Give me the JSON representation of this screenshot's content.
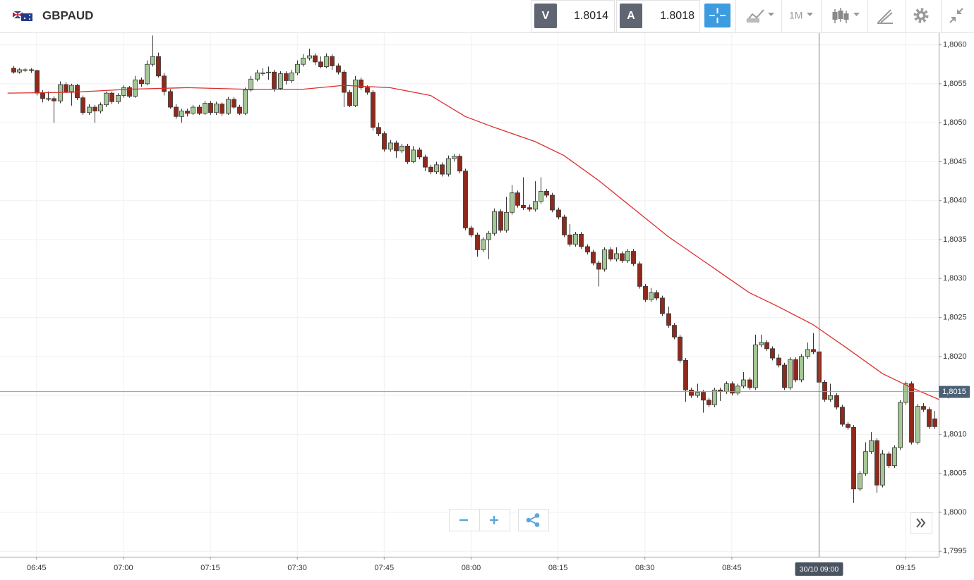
{
  "toolbar": {
    "symbol": "GBPAUD",
    "sell": {
      "label": "V",
      "price": 1.8014
    },
    "buy": {
      "label": "A",
      "price": 1.8018
    },
    "timeframe": "1M"
  },
  "chart_data": {
    "type": "candlestick",
    "up_color": "#a5c796",
    "down_color": "#8e2a1c",
    "grid": true,
    "xlim": [
      -2.3,
      159.7
    ],
    "ylim": [
      1.79943,
      1.80615
    ],
    "xticks": [
      {
        "value": 4,
        "label": "06:45"
      },
      {
        "value": 19,
        "label": "07:00"
      },
      {
        "value": 34,
        "label": "07:15"
      },
      {
        "value": 49,
        "label": "07:30"
      },
      {
        "value": 64,
        "label": "07:45"
      },
      {
        "value": 79,
        "label": "08:00"
      },
      {
        "value": 94,
        "label": "08:15"
      },
      {
        "value": 109,
        "label": "08:30"
      },
      {
        "value": 124,
        "label": "08:45"
      },
      {
        "value": 154,
        "label": "09:15"
      }
    ],
    "yticks": [
      {
        "value": 1.7995,
        "label": "1,7995"
      },
      {
        "value": 1.8,
        "label": "1,8000"
      },
      {
        "value": 1.8005,
        "label": "1,8005"
      },
      {
        "value": 1.801,
        "label": "1,8010"
      },
      {
        "value": 1.8015,
        "label": "1,8015"
      },
      {
        "value": 1.802,
        "label": "1,8020"
      },
      {
        "value": 1.8025,
        "label": "1,8025"
      },
      {
        "value": 1.803,
        "label": "1,8030"
      },
      {
        "value": 1.8035,
        "label": "1,8035"
      },
      {
        "value": 1.804,
        "label": "1,8040"
      },
      {
        "value": 1.8045,
        "label": "1,8045"
      },
      {
        "value": 1.805,
        "label": "1,8050"
      },
      {
        "value": 1.8055,
        "label": "1,8055"
      },
      {
        "value": 1.806,
        "label": "1,8060"
      }
    ],
    "price_line": {
      "value": 1.80155,
      "label": "1,8015"
    },
    "crosshair": {
      "x": 139,
      "label": "30/10 09:00"
    },
    "ma": {
      "color": "#d9302c",
      "x": [
        -1,
        10,
        20,
        30,
        40,
        50,
        57,
        65,
        72,
        78,
        83,
        90,
        95,
        101,
        107,
        113,
        120,
        127,
        132,
        138,
        144,
        150,
        155,
        160
      ],
      "values": [
        1.80538,
        1.80539,
        1.80543,
        1.80545,
        1.80543,
        1.80543,
        1.80548,
        1.80545,
        1.80535,
        1.80508,
        1.80494,
        1.80476,
        1.80458,
        1.80426,
        1.8039,
        1.80354,
        1.80318,
        1.80282,
        1.80264,
        1.80241,
        1.8021,
        1.80178,
        1.8016,
        1.80144
      ]
    },
    "candles": [
      [
        1.8057,
        1.80573,
        1.80563,
        1.80565
      ],
      [
        1.80565,
        1.8057,
        1.80563,
        1.80568
      ],
      [
        1.80568,
        1.8057,
        1.80565,
        1.80568
      ],
      [
        1.80568,
        1.8057,
        1.80564,
        1.80567
      ],
      [
        1.80567,
        1.80568,
        1.80535,
        1.80538
      ],
      [
        1.80538,
        1.80542,
        1.80526,
        1.80531
      ],
      [
        1.80531,
        1.8054,
        1.80528,
        1.80531
      ],
      [
        1.80531,
        1.80534,
        1.805,
        1.80528
      ],
      [
        1.80528,
        1.80553,
        1.80525,
        1.80549
      ],
      [
        1.80549,
        1.80552,
        1.80538,
        1.8054
      ],
      [
        1.8054,
        1.8055,
        1.80522,
        1.80548
      ],
      [
        1.80548,
        1.8055,
        1.80529,
        1.80532
      ],
      [
        1.80532,
        1.80535,
        1.8051,
        1.80513
      ],
      [
        1.80513,
        1.80524,
        1.8051,
        1.8052
      ],
      [
        1.8052,
        1.80523,
        1.805,
        1.80515
      ],
      [
        1.80515,
        1.80526,
        1.80512,
        1.80523
      ],
      [
        1.80523,
        1.8054,
        1.8052,
        1.80538
      ],
      [
        1.80538,
        1.8054,
        1.80524,
        1.80527
      ],
      [
        1.80527,
        1.80538,
        1.80524,
        1.80535
      ],
      [
        1.80535,
        1.80548,
        1.80532,
        1.80545
      ],
      [
        1.80545,
        1.80547,
        1.80532,
        1.80534
      ],
      [
        1.80534,
        1.8056,
        1.80532,
        1.80555
      ],
      [
        1.80555,
        1.80558,
        1.80546,
        1.8055
      ],
      [
        1.8055,
        1.8058,
        1.80548,
        1.80575
      ],
      [
        1.80575,
        1.80612,
        1.80572,
        1.80585
      ],
      [
        1.80585,
        1.8059,
        1.80558,
        1.8056
      ],
      [
        1.8056,
        1.80564,
        1.80535,
        1.8054
      ],
      [
        1.8054,
        1.80543,
        1.80518,
        1.8052
      ],
      [
        1.8052,
        1.80524,
        1.80505,
        1.80508
      ],
      [
        1.80508,
        1.80518,
        1.805,
        1.80515
      ],
      [
        1.80515,
        1.80518,
        1.80508,
        1.80512
      ],
      [
        1.80512,
        1.80523,
        1.8051,
        1.8052
      ],
      [
        1.8052,
        1.80523,
        1.8051,
        1.80512
      ],
      [
        1.80512,
        1.80528,
        1.8051,
        1.80525
      ],
      [
        1.80525,
        1.80528,
        1.8051,
        1.80513
      ],
      [
        1.80513,
        1.80527,
        1.8051,
        1.80524
      ],
      [
        1.80524,
        1.80526,
        1.80509,
        1.80512
      ],
      [
        1.80512,
        1.80533,
        1.8051,
        1.8053
      ],
      [
        1.8053,
        1.80533,
        1.80518,
        1.8052
      ],
      [
        1.8052,
        1.80523,
        1.8051,
        1.80512
      ],
      [
        1.80512,
        1.80545,
        1.8051,
        1.80542
      ],
      [
        1.80542,
        1.8056,
        1.8054,
        1.80556
      ],
      [
        1.80556,
        1.80568,
        1.80553,
        1.80564
      ],
      [
        1.80564,
        1.8057,
        1.8056,
        1.80564
      ],
      [
        1.80564,
        1.80572,
        1.80555,
        1.80565
      ],
      [
        1.80565,
        1.80568,
        1.8054,
        1.80544
      ],
      [
        1.80544,
        1.80566,
        1.80542,
        1.80563
      ],
      [
        1.80563,
        1.80566,
        1.80549,
        1.80554
      ],
      [
        1.80554,
        1.80568,
        1.80551,
        1.80564
      ],
      [
        1.80564,
        1.8058,
        1.80561,
        1.80575
      ],
      [
        1.80575,
        1.80588,
        1.80572,
        1.80583
      ],
      [
        1.80583,
        1.80595,
        1.8058,
        1.80586
      ],
      [
        1.80586,
        1.80589,
        1.80574,
        1.80578
      ],
      [
        1.80578,
        1.80585,
        1.8057,
        1.80572
      ],
      [
        1.80572,
        1.80589,
        1.8057,
        1.80585
      ],
      [
        1.80585,
        1.80588,
        1.80568,
        1.80573
      ],
      [
        1.80573,
        1.80576,
        1.80562,
        1.80565
      ],
      [
        1.80565,
        1.80568,
        1.8052,
        1.80539
      ],
      [
        1.80539,
        1.80542,
        1.8052,
        1.80522
      ],
      [
        1.80522,
        1.8056,
        1.8052,
        1.80555
      ],
      [
        1.80555,
        1.80558,
        1.80542,
        1.80545
      ],
      [
        1.80545,
        1.80548,
        1.80536,
        1.80539
      ],
      [
        1.80539,
        1.80542,
        1.8049,
        1.80494
      ],
      [
        1.80494,
        1.805,
        1.80483,
        1.80486
      ],
      [
        1.80486,
        1.80489,
        1.80463,
        1.80466
      ],
      [
        1.80466,
        1.80478,
        1.80463,
        1.80474
      ],
      [
        1.80474,
        1.80477,
        1.80455,
        1.80464
      ],
      [
        1.80464,
        1.80473,
        1.80461,
        1.8047
      ],
      [
        1.8047,
        1.80473,
        1.80447,
        1.8045
      ],
      [
        1.8045,
        1.8047,
        1.80448,
        1.80465
      ],
      [
        1.80465,
        1.80468,
        1.80453,
        1.80456
      ],
      [
        1.80456,
        1.80459,
        1.80438,
        1.80443
      ],
      [
        1.80443,
        1.80446,
        1.80434,
        1.80437
      ],
      [
        1.80437,
        1.8045,
        1.80434,
        1.80446
      ],
      [
        1.80446,
        1.80449,
        1.80431,
        1.80434
      ],
      [
        1.80434,
        1.80458,
        1.80431,
        1.80454
      ],
      [
        1.80454,
        1.8046,
        1.8045,
        1.80457
      ],
      [
        1.80457,
        1.8046,
        1.80435,
        1.80438
      ],
      [
        1.80438,
        1.80441,
        1.80362,
        1.80365
      ],
      [
        1.80365,
        1.80368,
        1.80353,
        1.80356
      ],
      [
        1.80356,
        1.80359,
        1.80328,
        1.80337
      ],
      [
        1.80337,
        1.80353,
        1.80334,
        1.8035
      ],
      [
        1.8035,
        1.80361,
        1.80325,
        1.80358
      ],
      [
        1.80358,
        1.8039,
        1.80355,
        1.80386
      ],
      [
        1.80386,
        1.80389,
        1.80359,
        1.80362
      ],
      [
        1.80362,
        1.80405,
        1.80359,
        1.80385
      ],
      [
        1.80385,
        1.8042,
        1.80382,
        1.8041
      ],
      [
        1.8041,
        1.80413,
        1.80391,
        1.80394
      ],
      [
        1.80394,
        1.8043,
        1.80388,
        1.80391
      ],
      [
        1.80391,
        1.80395,
        1.80386,
        1.80389
      ],
      [
        1.80389,
        1.80425,
        1.80386,
        1.80399
      ],
      [
        1.80399,
        1.8043,
        1.80396,
        1.80412
      ],
      [
        1.80412,
        1.80415,
        1.80404,
        1.80407
      ],
      [
        1.80407,
        1.8041,
        1.80385,
        1.80388
      ],
      [
        1.80388,
        1.80391,
        1.80376,
        1.80379
      ],
      [
        1.80379,
        1.80382,
        1.80353,
        1.80356
      ],
      [
        1.80356,
        1.8037,
        1.80341,
        1.80344
      ],
      [
        1.80344,
        1.8036,
        1.80341,
        1.80357
      ],
      [
        1.80357,
        1.8036,
        1.80338,
        1.80341
      ],
      [
        1.80341,
        1.80344,
        1.80331,
        1.80334
      ],
      [
        1.80334,
        1.80337,
        1.80317,
        1.8032
      ],
      [
        1.8032,
        1.80323,
        1.8029,
        1.80312
      ],
      [
        1.80312,
        1.8034,
        1.80309,
        1.80337
      ],
      [
        1.80337,
        1.8034,
        1.80322,
        1.80325
      ],
      [
        1.80325,
        1.8034,
        1.80322,
        1.80332
      ],
      [
        1.80332,
        1.80335,
        1.8032,
        1.80323
      ],
      [
        1.80323,
        1.80338,
        1.8032,
        1.80335
      ],
      [
        1.80335,
        1.80338,
        1.80316,
        1.80319
      ],
      [
        1.80319,
        1.80322,
        1.80287,
        1.8029
      ],
      [
        1.8029,
        1.80293,
        1.8027,
        1.80273
      ],
      [
        1.80273,
        1.80288,
        1.8027,
        1.80282
      ],
      [
        1.80282,
        1.80285,
        1.80272,
        1.80275
      ],
      [
        1.80275,
        1.80278,
        1.80252,
        1.80255
      ],
      [
        1.80255,
        1.80264,
        1.80237,
        1.8024
      ],
      [
        1.8024,
        1.80243,
        1.80222,
        1.80225
      ],
      [
        1.80225,
        1.80228,
        1.80192,
        1.80195
      ],
      [
        1.80195,
        1.80198,
        1.80142,
        1.80157
      ],
      [
        1.80157,
        1.8016,
        1.80147,
        1.8015
      ],
      [
        1.8015,
        1.80165,
        1.80147,
        1.80154
      ],
      [
        1.80154,
        1.80157,
        1.80128,
        1.80144
      ],
      [
        1.80144,
        1.80147,
        1.80135,
        1.80138
      ],
      [
        1.80138,
        1.8016,
        1.80135,
        1.80157
      ],
      [
        1.80157,
        1.8016,
        1.80143,
        1.80155
      ],
      [
        1.80155,
        1.80168,
        1.80152,
        1.80165
      ],
      [
        1.80165,
        1.80168,
        1.8015,
        1.80153
      ],
      [
        1.80153,
        1.80165,
        1.8015,
        1.80162
      ],
      [
        1.80162,
        1.8018,
        1.80159,
        1.8017
      ],
      [
        1.8017,
        1.80173,
        1.80157,
        1.8016
      ],
      [
        1.8016,
        1.80228,
        1.80157,
        1.80215
      ],
      [
        1.80215,
        1.80228,
        1.80212,
        1.80218
      ],
      [
        1.80218,
        1.80221,
        1.80207,
        1.8021
      ],
      [
        1.8021,
        1.80213,
        1.80195,
        1.80198
      ],
      [
        1.80198,
        1.80203,
        1.80186,
        1.80189
      ],
      [
        1.80189,
        1.80192,
        1.80157,
        1.8016
      ],
      [
        1.8016,
        1.80199,
        1.80157,
        1.80196
      ],
      [
        1.80196,
        1.80199,
        1.80167,
        1.8017
      ],
      [
        1.8017,
        1.80203,
        1.80167,
        1.802
      ],
      [
        1.802,
        1.80218,
        1.80197,
        1.80209
      ],
      [
        1.80209,
        1.8023,
        1.80203,
        1.80206
      ],
      [
        1.80206,
        1.80209,
        1.80164,
        1.80167
      ],
      [
        1.80167,
        1.8017,
        1.80142,
        1.80145
      ],
      [
        1.80145,
        1.80165,
        1.80142,
        1.8015
      ],
      [
        1.8015,
        1.80153,
        1.80132,
        1.80135
      ],
      [
        1.80135,
        1.80138,
        1.8011,
        1.80113
      ],
      [
        1.80113,
        1.80116,
        1.80106,
        1.80109
      ],
      [
        1.80109,
        1.80112,
        1.80012,
        1.8003
      ],
      [
        1.8003,
        1.80053,
        1.80027,
        1.8005
      ],
      [
        1.8005,
        1.8009,
        1.80047,
        1.80078
      ],
      [
        1.80078,
        1.80103,
        1.80075,
        1.80092
      ],
      [
        1.80092,
        1.80095,
        1.80025,
        1.80035
      ],
      [
        1.80035,
        1.8008,
        1.80032,
        1.80075
      ],
      [
        1.80075,
        1.80078,
        1.80057,
        1.8006
      ],
      [
        1.8006,
        1.80086,
        1.80057,
        1.80083
      ],
      [
        1.80083,
        1.80144,
        1.8008,
        1.80141
      ],
      [
        1.80141,
        1.80168,
        1.80138,
        1.80165
      ],
      [
        1.80165,
        1.80168,
        1.80087,
        1.8009
      ],
      [
        1.8009,
        1.80139,
        1.80087,
        1.80136
      ],
      [
        1.80136,
        1.8014,
        1.80129,
        1.80132
      ],
      [
        1.80132,
        1.80135,
        1.80107,
        1.8011
      ],
      [
        1.8012,
        1.8013,
        1.80107,
        1.8011
      ]
    ]
  }
}
